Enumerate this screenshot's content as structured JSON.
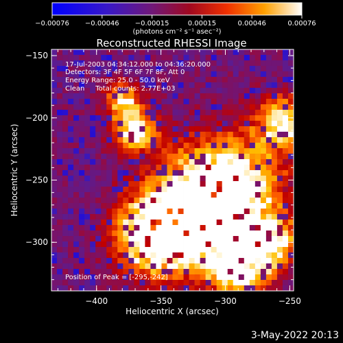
{
  "colorbar": {
    "ticks": [
      "-0.00076",
      "-0.00046",
      "-0.00015",
      "0.00015",
      "0.00046",
      "0.00076"
    ],
    "units_label": "(photons cm⁻² s⁻¹ asec⁻²)",
    "range": [
      -0.00076,
      0.00076
    ]
  },
  "image": {
    "title": "Reconstructed RHESSI Image",
    "info_lines": [
      "17-Jul-2003 04:34:12.000 to 04:36:20.000",
      "Detectors: 3F 4F 5F 6F 7F 8F, Att 0",
      "Energy Range: 25.0 - 50.0 keV",
      "Clean     Total counts: 2.77E+03"
    ],
    "peak_label": "Position of Peak = [-295,-242]"
  },
  "footer": {
    "timestamp": "3-May-2022 20:13"
  },
  "chart_data": {
    "type": "heatmap",
    "title": "Reconstructed RHESSI Image",
    "xlabel": "Heliocentric X (arcsec)",
    "ylabel": "Heliocentric Y (arcsec)",
    "xlim": [
      -435,
      -247
    ],
    "ylim": [
      -339,
      -145
    ],
    "x_ticks": [
      -400,
      -350,
      -300,
      -250
    ],
    "y_ticks": [
      -150,
      -200,
      -250,
      -300
    ],
    "x_tick_labels": [
      "−400",
      "−350",
      "−300",
      "−250"
    ],
    "y_tick_labels": [
      "−150",
      "−200",
      "−250",
      "−300"
    ],
    "colormap": [
      "#0000ff",
      "#5020a0",
      "#801060",
      "#c00000",
      "#ff6000",
      "#ffc000",
      "#ffffff"
    ],
    "peak_position": [
      -295,
      -242
    ],
    "bright_regions": [
      {
        "x": -300,
        "y": -258,
        "intensity": 1.0,
        "spread": 28
      },
      {
        "x": -330,
        "y": -285,
        "intensity": 0.85,
        "spread": 25
      },
      {
        "x": -355,
        "y": -295,
        "intensity": 0.8,
        "spread": 20
      },
      {
        "x": -370,
        "y": -210,
        "intensity": 0.75,
        "spread": 12
      },
      {
        "x": -255,
        "y": -205,
        "intensity": 0.75,
        "spread": 14
      },
      {
        "x": -290,
        "y": -320,
        "intensity": 0.8,
        "spread": 16
      },
      {
        "x": -265,
        "y": -300,
        "intensity": 0.7,
        "spread": 14
      },
      {
        "x": -380,
        "y": -185,
        "intensity": 0.6,
        "spread": 9
      }
    ]
  }
}
